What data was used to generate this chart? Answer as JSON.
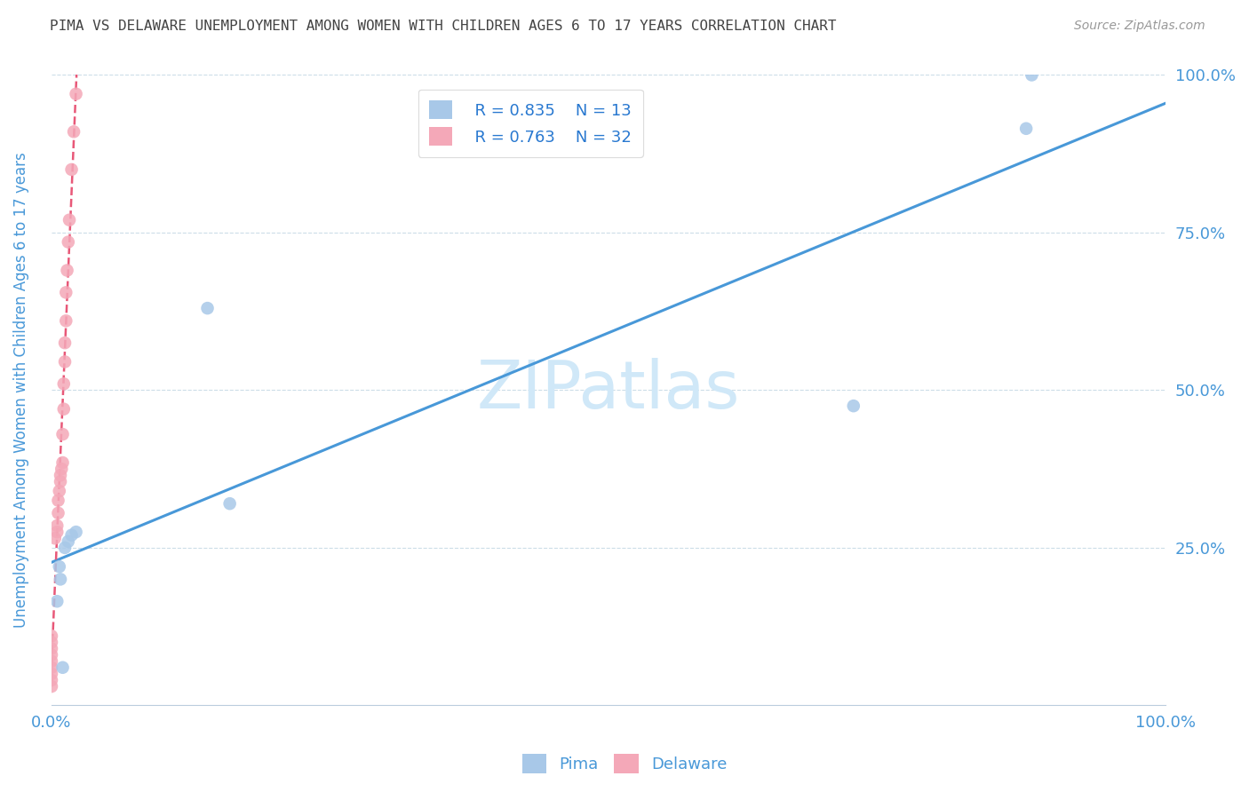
{
  "title": "PIMA VS DELAWARE UNEMPLOYMENT AMONG WOMEN WITH CHILDREN AGES 6 TO 17 YEARS CORRELATION CHART",
  "source": "Source: ZipAtlas.com",
  "ylabel": "Unemployment Among Women with Children Ages 6 to 17 years",
  "xlim": [
    0.0,
    1.0
  ],
  "ylim": [
    0.0,
    1.0
  ],
  "pima_color": "#a8c8e8",
  "delaware_color": "#f4a8b8",
  "pima_line_color": "#4898d8",
  "delaware_line_color": "#e85878",
  "pima_R": 0.835,
  "pima_N": 13,
  "delaware_R": 0.763,
  "delaware_N": 32,
  "legend_color": "#2878d0",
  "watermark": "ZIPatlas",
  "watermark_color": "#d0e8f8",
  "pima_x": [
    0.005,
    0.007,
    0.008,
    0.01,
    0.012,
    0.015,
    0.018,
    0.022,
    0.14,
    0.16,
    0.72,
    0.875,
    0.88
  ],
  "pima_y": [
    0.165,
    0.22,
    0.2,
    0.06,
    0.25,
    0.26,
    0.27,
    0.275,
    0.63,
    0.32,
    0.475,
    0.915,
    1.0
  ],
  "delaware_x": [
    0.0,
    0.0,
    0.0,
    0.0,
    0.0,
    0.0,
    0.0,
    0.0,
    0.0,
    0.003,
    0.005,
    0.005,
    0.006,
    0.006,
    0.007,
    0.008,
    0.008,
    0.009,
    0.01,
    0.01,
    0.011,
    0.011,
    0.012,
    0.012,
    0.013,
    0.013,
    0.014,
    0.015,
    0.016,
    0.018,
    0.02,
    0.022
  ],
  "delaware_y": [
    0.03,
    0.04,
    0.05,
    0.06,
    0.07,
    0.08,
    0.09,
    0.1,
    0.11,
    0.265,
    0.275,
    0.285,
    0.305,
    0.325,
    0.34,
    0.355,
    0.365,
    0.375,
    0.385,
    0.43,
    0.47,
    0.51,
    0.545,
    0.575,
    0.61,
    0.655,
    0.69,
    0.735,
    0.77,
    0.85,
    0.91,
    0.97
  ],
  "background_color": "#ffffff",
  "grid_color": "#ccdde8",
  "axis_color": "#4898d8",
  "title_color": "#444444",
  "source_color": "#999999",
  "marker_size": 110,
  "legend_fontsize": 13,
  "tick_fontsize": 13,
  "ylabel_fontsize": 12,
  "title_fontsize": 11.5
}
